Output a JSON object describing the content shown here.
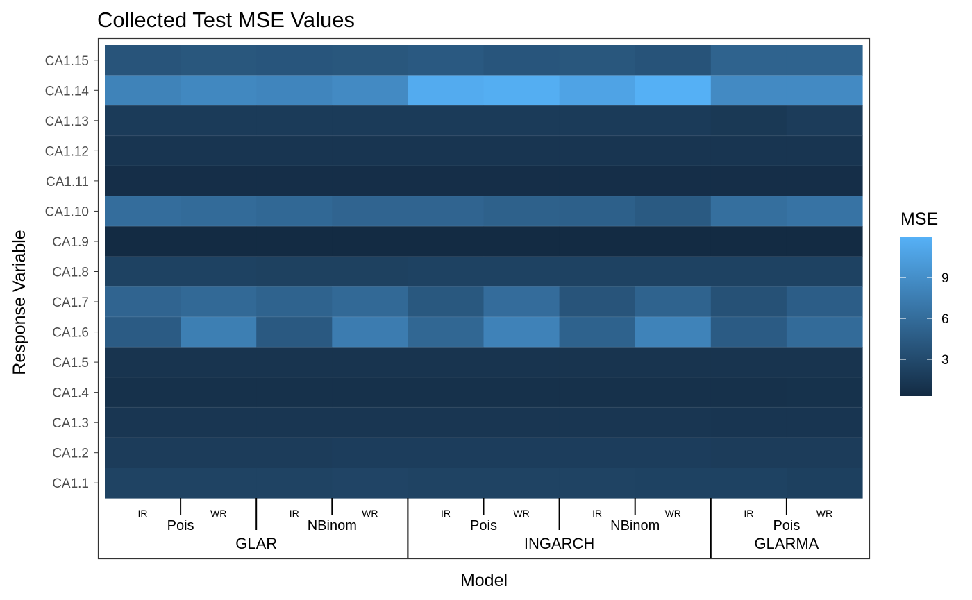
{
  "chart_data": {
    "type": "heatmap",
    "title": "Collected Test MSE Values",
    "xlabel": "Model",
    "ylabel": "Response Variable",
    "legend": {
      "title": "MSE",
      "position": "right",
      "breaks": [
        3,
        6,
        9
      ],
      "range": [
        0.3,
        12.0
      ],
      "color_low": "#132B43",
      "color_high": "#56B1F7"
    },
    "columns": [
      {
        "model": "GLAR",
        "dist": "Pois",
        "sub": "IR"
      },
      {
        "model": "GLAR",
        "dist": "Pois",
        "sub": "WR"
      },
      {
        "model": "GLAR",
        "dist": "NBinom",
        "sub": "IR"
      },
      {
        "model": "GLAR",
        "dist": "NBinom",
        "sub": "WR"
      },
      {
        "model": "INGARCH",
        "dist": "Pois",
        "sub": "IR"
      },
      {
        "model": "INGARCH",
        "dist": "Pois",
        "sub": "WR"
      },
      {
        "model": "INGARCH",
        "dist": "NBinom",
        "sub": "IR"
      },
      {
        "model": "INGARCH",
        "dist": "NBinom",
        "sub": "WR"
      },
      {
        "model": "GLARMA",
        "dist": "Pois",
        "sub": "IR"
      },
      {
        "model": "GLARMA",
        "dist": "Pois",
        "sub": "WR"
      }
    ],
    "rows": [
      "CA1.15",
      "CA1.14",
      "CA1.13",
      "CA1.12",
      "CA1.11",
      "CA1.10",
      "CA1.9",
      "CA1.8",
      "CA1.7",
      "CA1.6",
      "CA1.5",
      "CA1.4",
      "CA1.3",
      "CA1.2",
      "CA1.1"
    ],
    "values": [
      [
        3.9,
        4.1,
        4.0,
        4.1,
        4.3,
        4.0,
        4.1,
        3.8,
        5.2,
        5.2
      ],
      [
        8.0,
        8.4,
        8.2,
        8.6,
        11.5,
        11.7,
        10.8,
        11.9,
        8.6,
        8.6
      ],
      [
        1.7,
        1.7,
        1.7,
        1.7,
        1.7,
        1.7,
        1.7,
        1.7,
        1.5,
        1.8
      ],
      [
        1.2,
        1.2,
        1.2,
        1.2,
        1.2,
        1.2,
        1.2,
        1.2,
        1.2,
        1.2
      ],
      [
        0.6,
        0.6,
        0.6,
        0.6,
        0.6,
        0.6,
        0.6,
        0.6,
        0.6,
        0.6
      ],
      [
        6.1,
        5.9,
        5.6,
        5.3,
        5.3,
        5.0,
        4.9,
        4.4,
        6.2,
        6.6
      ],
      [
        0.3,
        0.3,
        0.3,
        0.3,
        0.3,
        0.3,
        0.3,
        0.3,
        0.3,
        0.3
      ],
      [
        2.3,
        2.3,
        2.2,
        2.2,
        2.3,
        2.3,
        2.3,
        2.3,
        2.3,
        2.3
      ],
      [
        5.3,
        5.7,
        5.2,
        5.7,
        4.2,
        6.0,
        3.9,
        5.2,
        3.6,
        4.7
      ],
      [
        4.5,
        7.6,
        4.3,
        7.4,
        5.5,
        7.9,
        5.1,
        8.0,
        4.5,
        5.9
      ],
      [
        1.1,
        1.1,
        1.1,
        1.1,
        1.1,
        1.1,
        1.1,
        1.1,
        1.1,
        1.1
      ],
      [
        0.8,
        0.8,
        0.8,
        0.8,
        0.8,
        0.8,
        0.8,
        0.8,
        0.8,
        0.9
      ],
      [
        1.3,
        1.3,
        1.3,
        1.3,
        1.3,
        1.3,
        1.3,
        1.3,
        1.2,
        1.2
      ],
      [
        1.8,
        1.8,
        1.8,
        1.9,
        1.9,
        1.9,
        1.9,
        1.9,
        1.8,
        1.8
      ],
      [
        2.4,
        2.4,
        2.4,
        2.5,
        2.4,
        2.4,
        2.4,
        2.3,
        2.3,
        2.1
      ]
    ],
    "grid": false
  }
}
